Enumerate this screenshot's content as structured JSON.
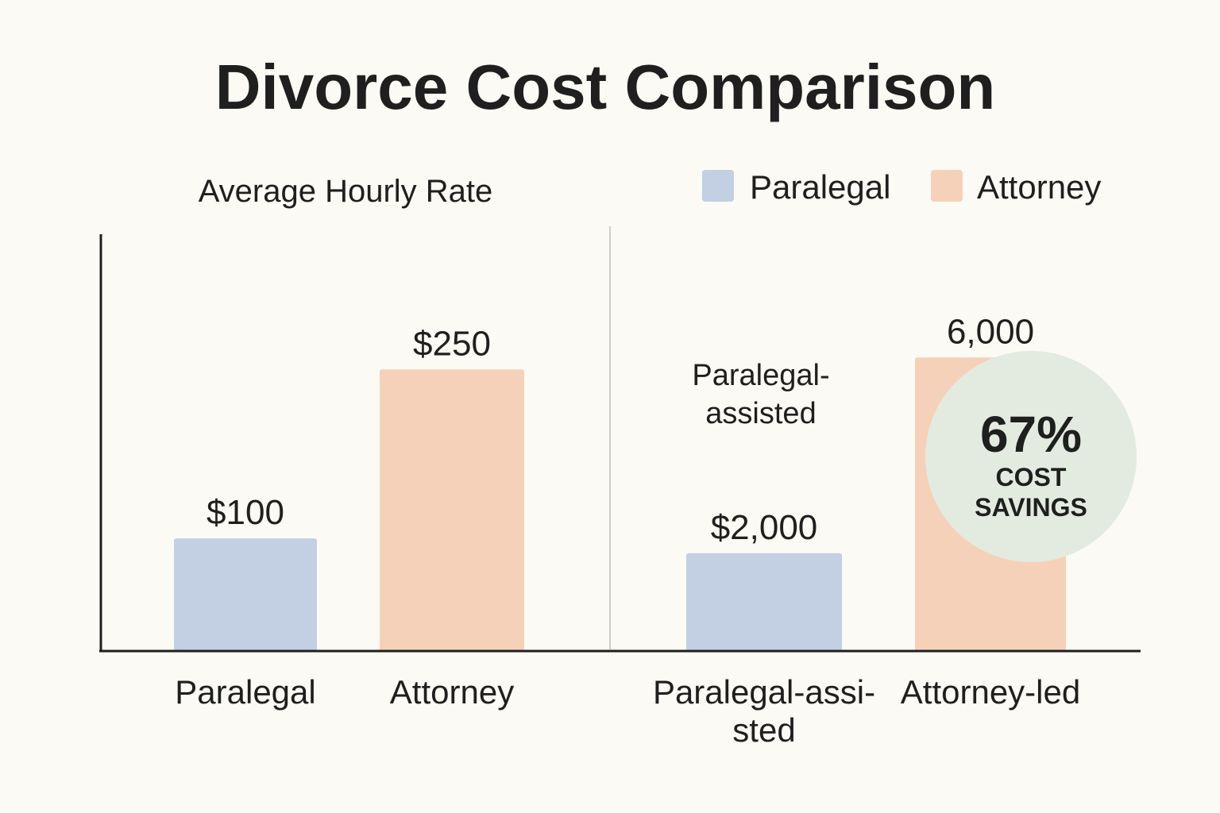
{
  "title": "Divorce Cost Comparison",
  "colors": {
    "background": "#fcfaf4",
    "paralegal": "#c3cfe2",
    "attorney": "#f6d1b9",
    "badge": "#e3ebe0",
    "axis": "#1f1f1f",
    "divider": "#cfcfcf",
    "text": "#1f1f1f"
  },
  "legend": [
    {
      "label": "Paralegal",
      "color": "#c3cfe2"
    },
    {
      "label": "Attorney",
      "color": "#f6d1b9"
    }
  ],
  "badge": {
    "value_text": "67%",
    "line1": "COST",
    "line2": "SAVINGS"
  },
  "chart_data": [
    {
      "type": "bar",
      "title": "Average Hourly Rate",
      "categories": [
        [
          "Paralegal"
        ],
        [
          "Attorney"
        ]
      ],
      "values": [
        100,
        250
      ],
      "value_labels": [
        "$100",
        "$250"
      ],
      "ylim": [
        0,
        370
      ],
      "colors": [
        "#c3cfe2",
        "#f6d1b9"
      ]
    },
    {
      "type": "bar",
      "title": "",
      "categories": [
        [
          "Paralegal-assi-",
          "sted"
        ],
        [
          "Attorney-led"
        ]
      ],
      "values": [
        2000,
        6000
      ],
      "value_labels": [
        "$2,000",
        "6,000"
      ],
      "annotation": [
        "Paralegal-",
        "assisted"
      ],
      "ylim": [
        0,
        8520
      ],
      "colors": [
        "#c3cfe2",
        "#f6d1b9"
      ]
    }
  ]
}
